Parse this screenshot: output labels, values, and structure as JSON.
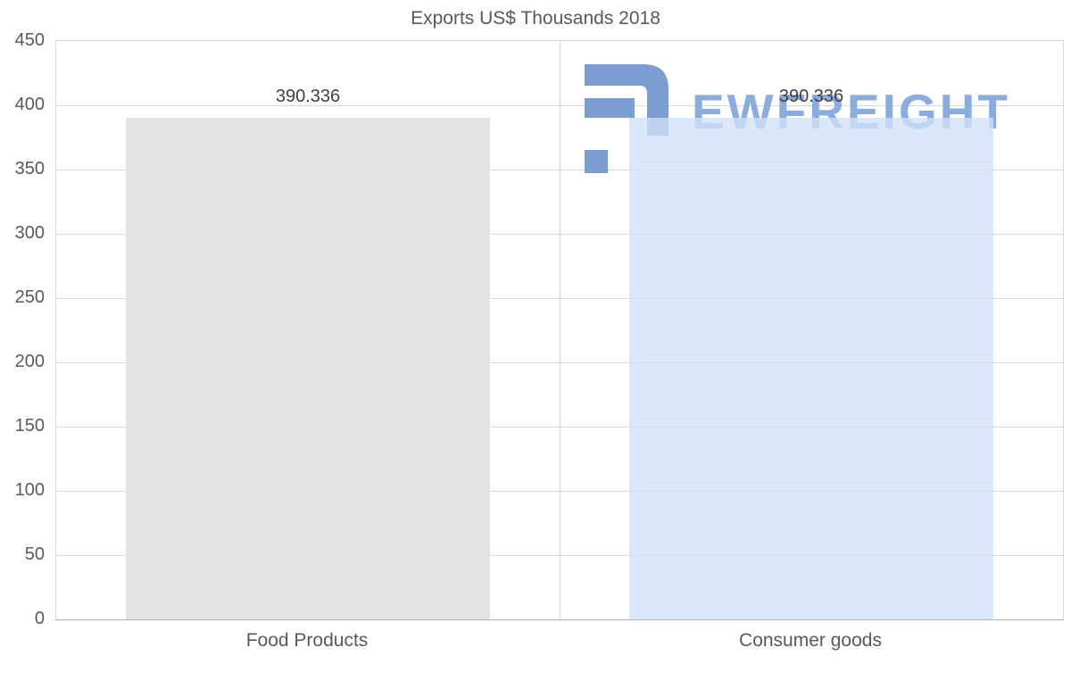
{
  "chart_data": {
    "type": "bar",
    "title": "Exports US$ Thousands 2018",
    "categories": [
      "Food Products",
      "Consumer goods"
    ],
    "values": [
      390.336,
      390.336
    ],
    "value_labels": [
      "390.336",
      "390.336"
    ],
    "series_colors": [
      "#e3e3e3",
      "#cfe2f7"
    ],
    "xlabel": "",
    "ylabel": "",
    "ylim": [
      0,
      450
    ],
    "yticks": [
      0,
      50,
      100,
      150,
      200,
      250,
      300,
      350,
      400,
      450
    ],
    "grid": true,
    "legend_position": "none"
  },
  "watermark": {
    "text": "EWFREIGHT",
    "icon": "ewfreight-logo",
    "color": "#84a9de"
  },
  "colors": {
    "background": "#ffffff",
    "grid": "#d9d9d9",
    "axis_text": "#595959",
    "title_text": "#595959",
    "value_text": "#404040"
  }
}
